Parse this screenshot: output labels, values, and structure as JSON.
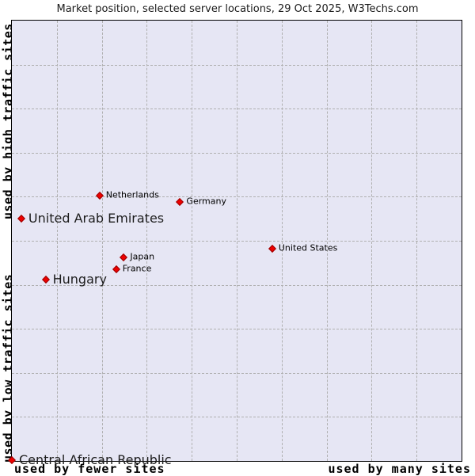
{
  "colors": {
    "plot_bg": "#e6e6f4",
    "grid": "#b0b0b0",
    "marker": "#ee0000",
    "marker_edge": "#990000",
    "border": "#000000",
    "text": "#000000"
  },
  "chart_data": {
    "type": "scatter",
    "title": "Market position, selected server locations, 29 Oct 2025, W3Techs.com",
    "x_axis": {
      "left_label": "used by fewer sites",
      "right_label": "used by many sites",
      "min": 0,
      "max": 100,
      "ticks": [],
      "gridlines_pct": [
        10,
        20,
        30,
        40,
        50,
        60,
        70,
        80,
        90
      ]
    },
    "y_axis": {
      "top_label": "used by high traffic sites",
      "bottom_label": "used by low traffic sites",
      "min": 0,
      "max": 100,
      "ticks": [],
      "gridlines_pct": [
        10,
        20,
        30,
        40,
        50,
        60,
        70,
        80,
        90
      ]
    },
    "legend": "none",
    "grid": true,
    "points": [
      {
        "name": "Netherlands",
        "x_pct": 19.5,
        "y_pct": 60.2,
        "label_size": "small"
      },
      {
        "name": "Germany",
        "x_pct": 37.4,
        "y_pct": 58.8,
        "label_size": "small"
      },
      {
        "name": "United Arab Emirates",
        "x_pct": 2.1,
        "y_pct": 55.0,
        "label_size": "large"
      },
      {
        "name": "United States",
        "x_pct": 57.9,
        "y_pct": 48.2,
        "label_size": "small"
      },
      {
        "name": "Japan",
        "x_pct": 24.9,
        "y_pct": 46.2,
        "label_size": "small"
      },
      {
        "name": "France",
        "x_pct": 23.2,
        "y_pct": 43.5,
        "label_size": "small"
      },
      {
        "name": "Hungary",
        "x_pct": 7.5,
        "y_pct": 41.2,
        "label_size": "large"
      },
      {
        "name": "Central African Republic",
        "x_pct": 0.0,
        "y_pct": 0.2,
        "label_size": "large"
      }
    ]
  }
}
